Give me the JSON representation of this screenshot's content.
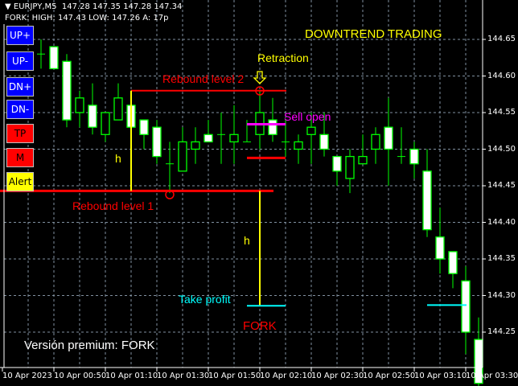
{
  "header": {
    "symbol_line": "EURJPY,M5  147.28 147.35 147.28 147.34",
    "fork_line": "FORK: HIGH: 147.43 LOW: 147.26 A: 17p"
  },
  "buttons": [
    {
      "label": "UP+",
      "color": "#0000ff",
      "text_color": "#ffffff"
    },
    {
      "label": "UP-",
      "color": "#0000ff",
      "text_color": "#ffffff"
    },
    {
      "label": "DN+",
      "color": "#0000ff",
      "text_color": "#ffffff"
    },
    {
      "label": "DN-",
      "color": "#0000ff",
      "text_color": "#ffffff"
    },
    {
      "label": "TP",
      "color": "#ff0000",
      "text_color": "#000000"
    },
    {
      "label": "M",
      "color": "#ff0000",
      "text_color": "#000000"
    },
    {
      "label": "Alert",
      "color": "#ffff00",
      "text_color": "#000000"
    }
  ],
  "annotations": {
    "title": "DOWNTREND TRADING",
    "retraction": "Retraction",
    "rebound_level_1": "Rebound level 1",
    "rebound_level_2": "Rebound level 2",
    "sell_open": "Sell open",
    "take_profit": "Take profit",
    "h_label_1": "h",
    "h_label_2": "h",
    "fork": "FORK",
    "premium": "Versión premium: FORK"
  },
  "colors": {
    "background": "#000000",
    "candle_outline": "#00ff00",
    "bear_body": "#ffffff",
    "bull_body": "#000000",
    "grid": "#8090a0",
    "rebound": "#ff0000",
    "h_line": "#ffff00",
    "sell": "#ff00ff",
    "take_profit": "#00ffff"
  },
  "price_axis": [
    "144.65",
    "144.60",
    "144.55",
    "144.50",
    "144.45",
    "144.40",
    "144.35",
    "144.30",
    "144.25"
  ],
  "time_axis": [
    "10 Apr 2023",
    "10 Apr 00:50",
    "10 Apr 01:10",
    "10 Apr 01:30",
    "10 Apr 01:50",
    "10 Apr 02:10",
    "10 Apr 02:30",
    "10 Apr 02:50",
    "10 Apr 03:10",
    "10 Apr 03:30"
  ],
  "levels": {
    "rebound_level_1": 144.443,
    "rebound_level_2": 144.58,
    "sell_open": 144.534,
    "stop": 144.488,
    "take_profit": 144.286,
    "take_profit_2": 144.287
  },
  "candles": [
    {
      "o": 144.63,
      "h": 144.65,
      "l": 144.61,
      "c": 144.63
    },
    {
      "o": 144.64,
      "h": 144.64,
      "l": 144.61,
      "c": 144.61
    },
    {
      "o": 144.62,
      "h": 144.63,
      "l": 144.53,
      "c": 144.54
    },
    {
      "o": 144.55,
      "h": 144.58,
      "l": 144.53,
      "c": 144.57
    },
    {
      "o": 144.56,
      "h": 144.59,
      "l": 144.52,
      "c": 144.53
    },
    {
      "o": 144.52,
      "h": 144.55,
      "l": 144.51,
      "c": 144.55
    },
    {
      "o": 144.54,
      "h": 144.59,
      "l": 144.54,
      "c": 144.57
    },
    {
      "o": 144.56,
      "h": 144.57,
      "l": 144.53,
      "c": 144.53
    },
    {
      "o": 144.54,
      "h": 144.54,
      "l": 144.5,
      "c": 144.52
    },
    {
      "o": 144.53,
      "h": 144.54,
      "l": 144.48,
      "c": 144.49
    },
    {
      "o": 144.48,
      "h": 144.51,
      "l": 144.44,
      "c": 144.48
    },
    {
      "o": 144.47,
      "h": 144.53,
      "l": 144.47,
      "c": 144.51
    },
    {
      "o": 144.5,
      "h": 144.53,
      "l": 144.48,
      "c": 144.51
    },
    {
      "o": 144.52,
      "h": 144.54,
      "l": 144.51,
      "c": 144.51
    },
    {
      "o": 144.52,
      "h": 144.55,
      "l": 144.48,
      "c": 144.52
    },
    {
      "o": 144.51,
      "h": 144.56,
      "l": 144.48,
      "c": 144.52
    },
    {
      "o": 144.51,
      "h": 144.54,
      "l": 144.51,
      "c": 144.51
    },
    {
      "o": 144.52,
      "h": 144.58,
      "l": 144.5,
      "c": 144.55
    },
    {
      "o": 144.54,
      "h": 144.57,
      "l": 144.51,
      "c": 144.52
    },
    {
      "o": 144.51,
      "h": 144.54,
      "l": 144.49,
      "c": 144.51
    },
    {
      "o": 144.5,
      "h": 144.52,
      "l": 144.48,
      "c": 144.51
    },
    {
      "o": 144.52,
      "h": 144.55,
      "l": 144.48,
      "c": 144.53
    },
    {
      "o": 144.52,
      "h": 144.55,
      "l": 144.49,
      "c": 144.5
    },
    {
      "o": 144.49,
      "h": 144.49,
      "l": 144.45,
      "c": 144.47
    },
    {
      "o": 144.46,
      "h": 144.5,
      "l": 144.44,
      "c": 144.49
    },
    {
      "o": 144.48,
      "h": 144.52,
      "l": 144.48,
      "c": 144.49
    },
    {
      "o": 144.5,
      "h": 144.53,
      "l": 144.48,
      "c": 144.52
    },
    {
      "o": 144.53,
      "h": 144.57,
      "l": 144.45,
      "c": 144.5
    },
    {
      "o": 144.49,
      "h": 144.53,
      "l": 144.48,
      "c": 144.49
    },
    {
      "o": 144.5,
      "h": 144.51,
      "l": 144.46,
      "c": 144.48
    },
    {
      "o": 144.47,
      "h": 144.5,
      "l": 144.38,
      "c": 144.39
    },
    {
      "o": 144.38,
      "h": 144.42,
      "l": 144.33,
      "c": 144.35
    },
    {
      "o": 144.36,
      "h": 144.36,
      "l": 144.31,
      "c": 144.33
    },
    {
      "o": 144.32,
      "h": 144.34,
      "l": 144.22,
      "c": 144.25
    },
    {
      "o": 144.24,
      "h": 144.27,
      "l": 144.17,
      "c": 144.18
    }
  ]
}
